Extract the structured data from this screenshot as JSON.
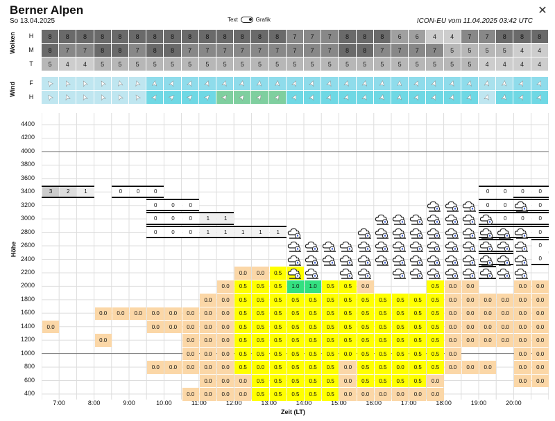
{
  "header": {
    "title": "Berner Alpen",
    "date": "So 13.04.2025",
    "model_info": "ICON-EU vom 11.04.2025 03:42 UTC",
    "toggle_left": "Text",
    "toggle_right": "Grafik",
    "close_icon": "close-icon"
  },
  "clouds": {
    "group_label": "Wolken",
    "row_labels": [
      "H",
      "M",
      "T"
    ],
    "H": [
      8,
      8,
      8,
      8,
      8,
      8,
      8,
      8,
      8,
      8,
      8,
      8,
      8,
      8,
      7,
      7,
      7,
      8,
      8,
      8,
      6,
      6,
      4,
      4,
      7,
      7,
      8,
      8,
      8
    ],
    "M": [
      8,
      7,
      7,
      8,
      8,
      7,
      8,
      8,
      7,
      7,
      7,
      7,
      7,
      7,
      7,
      7,
      7,
      8,
      8,
      7,
      7,
      7,
      7,
      5,
      5,
      5,
      5,
      4,
      4
    ],
    "T": [
      5,
      4,
      4,
      5,
      5,
      5,
      5,
      5,
      5,
      5,
      5,
      5,
      5,
      5,
      5,
      5,
      5,
      5,
      5,
      5,
      5,
      5,
      5,
      5,
      5,
      4,
      4,
      4,
      4
    ]
  },
  "wind": {
    "group_label": "Wind",
    "row_labels": [
      "F",
      "H"
    ]
  },
  "chart": {
    "y_axis_label": "Höhe",
    "x_axis_label": "Zeit (LT)",
    "y_ticks": [
      "4400",
      "4200",
      "4000",
      "3800",
      "3600",
      "3400",
      "3200",
      "3000",
      "2800",
      "2600",
      "2400",
      "2200",
      "2000",
      "1800",
      "1600",
      "1400",
      "1200",
      "1000",
      "800",
      "600",
      "400"
    ],
    "x_ticks": [
      "7:00",
      "8:00",
      "9:00",
      "10:00",
      "11:00",
      "12:00",
      "13:00",
      "14:00",
      "15:00",
      "16:00",
      "17:00",
      "18:00",
      "19:00",
      "20:00"
    ]
  },
  "colors": {
    "thermal_05": "#ffff00",
    "thermal_10": "#33e080",
    "thermal_00": "#fbd7a7",
    "cloud_dark": "#6e6e6e",
    "wind_light": "#8fdceb"
  }
}
